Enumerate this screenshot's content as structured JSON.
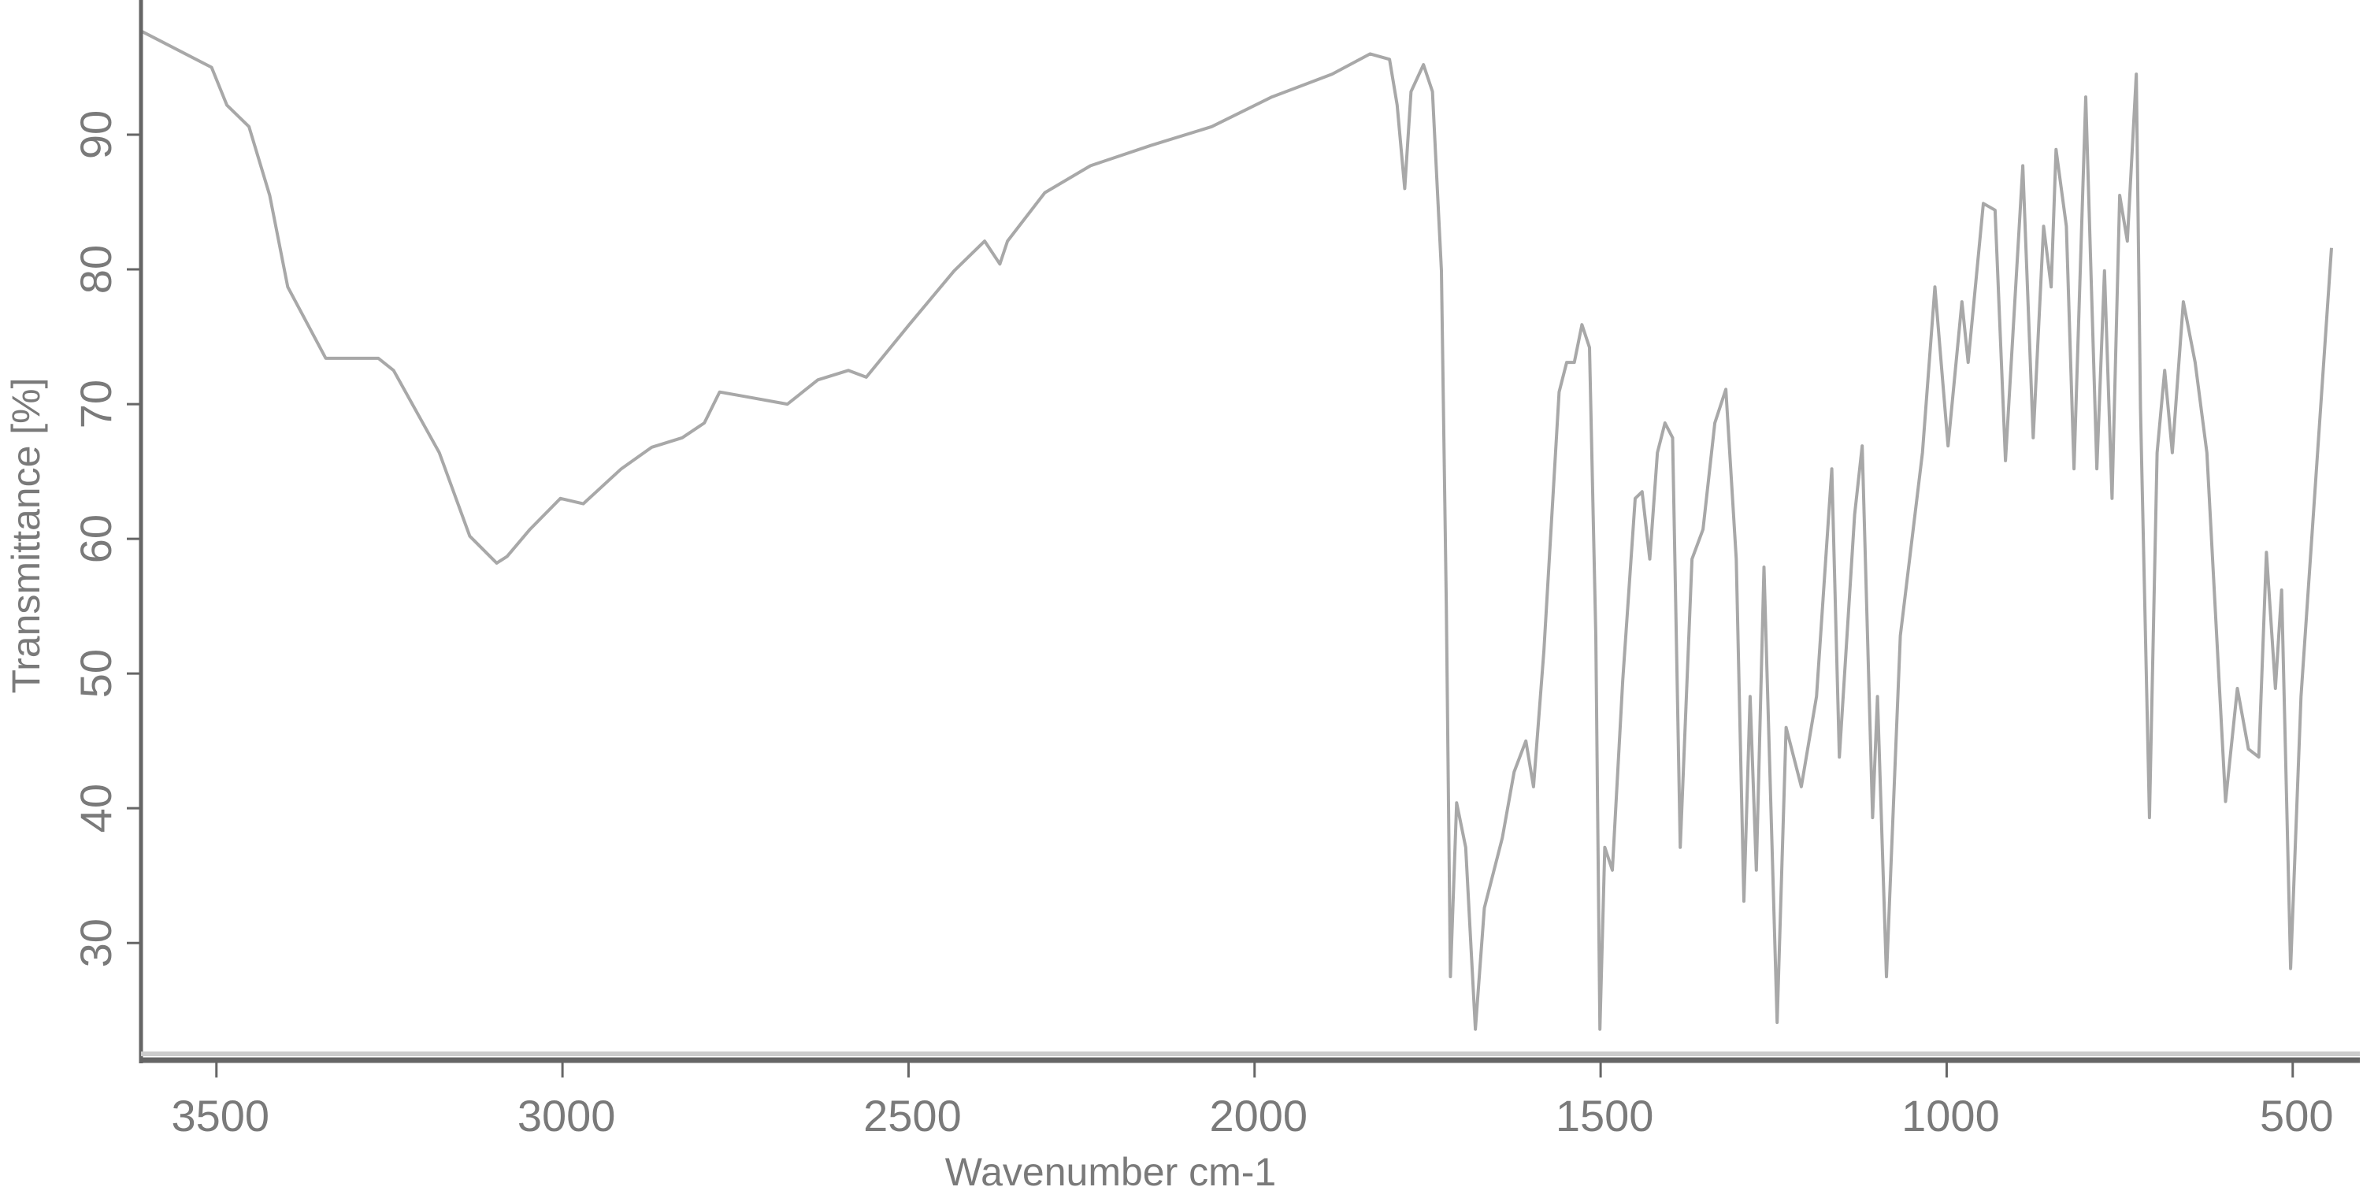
{
  "chart_data": {
    "type": "line",
    "title": "",
    "xlabel": "Wavenumber cm-1",
    "ylabel": "Transmittance [%]",
    "xlim": [
      3609,
      403
    ],
    "ylim": [
      21.3,
      100
    ],
    "x_reversed": true,
    "grid": false,
    "x_ticks": [
      3500,
      3000,
      2500,
      2000,
      1500,
      1000,
      500
    ],
    "y_ticks": [
      30,
      40,
      50,
      60,
      70,
      80,
      90
    ],
    "line_color": "#a8a8a8",
    "axis_color": "#666666",
    "series": [
      {
        "x": [
          3609,
          3507,
          3485,
          3453,
          3423,
          3397,
          3342,
          3266,
          3244,
          3178,
          3134,
          3095,
          3080,
          3047,
          3003,
          2970,
          2915,
          2871,
          2827,
          2795,
          2773,
          2740,
          2675,
          2631,
          2587,
          2561,
          2499,
          2434,
          2390,
          2368,
          2357,
          2303,
          2237,
          2150,
          2062,
          1975,
          1888,
          1833,
          1805,
          1794,
          1783,
          1774,
          1756,
          1743,
          1730,
          1723,
          1717,
          1708,
          1695,
          1681,
          1668,
          1642,
          1625,
          1608,
          1597,
          1582,
          1560,
          1549,
          1538,
          1527,
          1516,
          1507,
          1501,
          1494,
          1483,
          1468,
          1450,
          1440,
          1429,
          1418,
          1407,
          1396,
          1385,
          1368,
          1352,
          1335,
          1319,
          1304,
          1293,
          1284,
          1275,
          1264,
          1245,
          1232,
          1210,
          1188,
          1166,
          1155,
          1133,
          1122,
          1107,
          1100,
          1087,
          1067,
          1035,
          1017,
          998,
          978,
          969,
          947,
          930,
          915,
          890,
          875,
          860,
          849,
          842,
          827,
          816,
          799,
          783,
          772,
          761,
          750,
          739,
          726,
          720,
          707,
          696,
          685,
          674,
          658,
          641,
          624,
          597,
          580,
          564,
          549,
          538,
          525,
          516,
          503,
          488,
          444
        ],
        "y": [
          97.7,
          95,
          92.2,
          90.6,
          85.5,
          78.7,
          73.4,
          73.4,
          72.5,
          66.4,
          60.2,
          58.2,
          58.7,
          60.7,
          63,
          62.6,
          65.2,
          66.8,
          67.5,
          68.6,
          70.9,
          70.6,
          70,
          71.8,
          72.5,
          72,
          75.9,
          79.9,
          82.1,
          80.4,
          82.1,
          85.7,
          87.7,
          89.2,
          90.6,
          92.8,
          94.5,
          96,
          95.6,
          92.2,
          86,
          93.2,
          95.2,
          93.2,
          79.9,
          55.1,
          27.5,
          40.4,
          37.1,
          23.6,
          32.6,
          37.8,
          42.7,
          45,
          41.6,
          51.7,
          70.9,
          73.1,
          73.1,
          75.9,
          74.2,
          52.8,
          23.6,
          37.1,
          35.4,
          49.5,
          63,
          63.5,
          58.5,
          66.4,
          68.6,
          67.5,
          37.1,
          58.5,
          60.7,
          68.6,
          71.1,
          58.5,
          33.1,
          48.3,
          35.4,
          57.9,
          24.1,
          46,
          41.6,
          48.3,
          65.2,
          43.8,
          61.8,
          66.9,
          39.3,
          48.3,
          27.5,
          52.8,
          66.4,
          78.7,
          66.9,
          77.6,
          73.1,
          84.9,
          84.4,
          65.8,
          87.7,
          67.5,
          83.2,
          78.7,
          88.9,
          83.2,
          65.2,
          92.8,
          65.2,
          79.9,
          63,
          85.5,
          82.1,
          94.5,
          69.7,
          39.3,
          66.4,
          72.5,
          66.4,
          77.6,
          73.1,
          66.4,
          40.5,
          48.9,
          44.4,
          43.8,
          59,
          48.9,
          56.2,
          28.1,
          48.3,
          81.6
        ]
      }
    ]
  }
}
